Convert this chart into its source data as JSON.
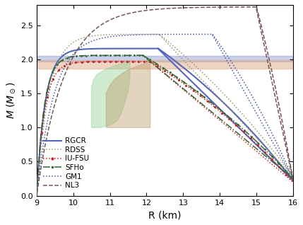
{
  "xlim": [
    9,
    16
  ],
  "ylim": [
    0.0,
    2.8
  ],
  "xlabel": "R (km)",
  "ylabel": "$M\\ (M_\\odot)$",
  "xticks": [
    9,
    10,
    11,
    12,
    13,
    14,
    15,
    16
  ],
  "yticks": [
    0.0,
    0.5,
    1.0,
    1.5,
    2.0,
    2.5
  ],
  "blue_band_y1": 1.97,
  "blue_band_y2": 2.05,
  "orange_band_y1": 1.87,
  "orange_band_y2": 1.99,
  "RGCR_color": "#5566bb",
  "RDSS_color": "#999966",
  "IUFSU_color": "#cc2222",
  "SFHo_color": "#336633",
  "GM1_color": "#4455aa",
  "NL3_color": "#775555",
  "green_patch_color": "#88cc88",
  "brown_patch_color": "#bb9966",
  "figsize": [
    4.29,
    3.18
  ],
  "dpi": 100
}
